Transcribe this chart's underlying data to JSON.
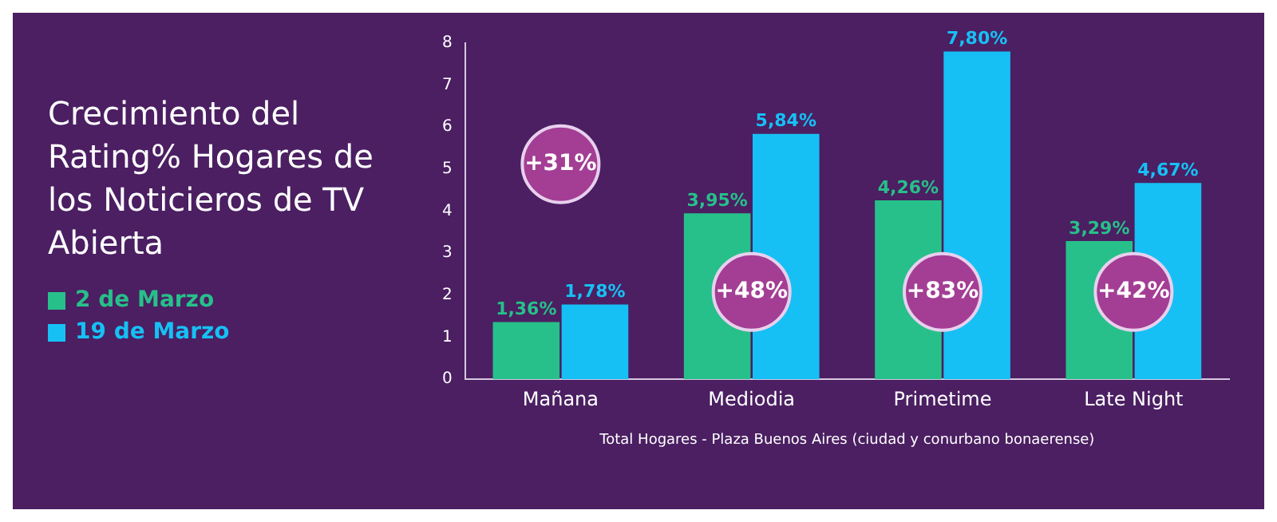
{
  "chart_data": {
    "type": "bar",
    "title": "Crecimiento del Rating% Hogares de los Noticieros de TV Abierta",
    "categories": [
      "Mañana",
      "Mediodia",
      "Primetime",
      "Late Night"
    ],
    "series": [
      {
        "name": "2 de Marzo",
        "color": "#27c08a",
        "values": [
          1.36,
          3.95,
          4.26,
          3.29
        ],
        "value_labels": [
          "1,36%",
          "3,95%",
          "4,26%",
          "3,29%"
        ]
      },
      {
        "name": "19 de Marzo",
        "color": "#16c0f5",
        "values": [
          1.78,
          5.84,
          7.8,
          4.67
        ],
        "value_labels": [
          "1,78%",
          "5,84%",
          "7,80%",
          "4,67%"
        ]
      }
    ],
    "ylim": [
      0,
      8
    ],
    "yticks": [
      0,
      1,
      2,
      3,
      4,
      5,
      6,
      7,
      8
    ],
    "grid": false,
    "legend": "left",
    "annotations": [
      "+31%",
      "+48%",
      "+83%",
      "+42%",
      "Total Hogares - Plaza Buenos Aires (ciudad y conurbano bonaerense)"
    ]
  }
}
